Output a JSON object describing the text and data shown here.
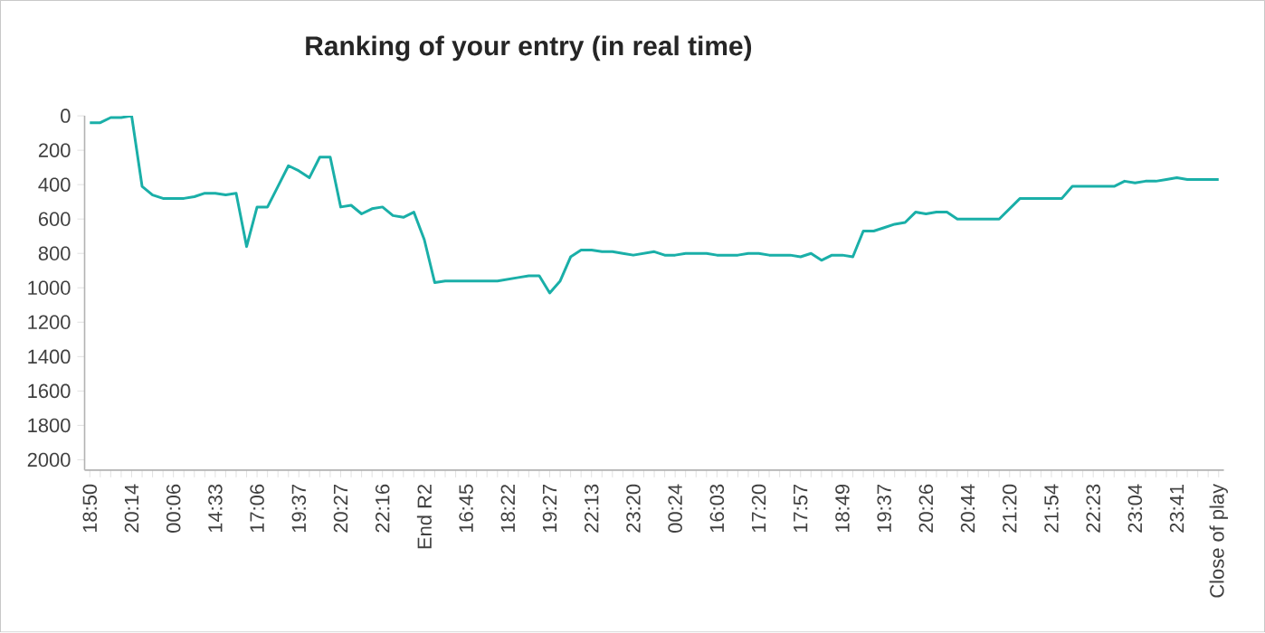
{
  "chart_data": {
    "type": "line",
    "title": "Ranking of your entry (in real time)",
    "categories": [
      "18:50",
      null,
      null,
      null,
      "20:14",
      null,
      null,
      null,
      "00:06",
      null,
      null,
      null,
      "14:33",
      null,
      null,
      null,
      "17:06",
      null,
      null,
      null,
      "19:37",
      null,
      null,
      null,
      "20:27",
      null,
      null,
      null,
      "22:16",
      null,
      null,
      null,
      "End R2",
      null,
      null,
      null,
      "16:45",
      null,
      null,
      null,
      "18:22",
      null,
      null,
      null,
      "19:27",
      null,
      null,
      null,
      "22:13",
      null,
      null,
      null,
      "23:20",
      null,
      null,
      null,
      "00:24",
      null,
      null,
      null,
      "16:03",
      null,
      null,
      null,
      "17:20",
      null,
      null,
      null,
      "17:57",
      null,
      null,
      null,
      "18:49",
      null,
      null,
      null,
      "19:37",
      null,
      null,
      null,
      "20:26",
      null,
      null,
      null,
      "20:44",
      null,
      null,
      null,
      "21:20",
      null,
      null,
      null,
      "21:54",
      null,
      null,
      null,
      "22:23",
      null,
      null,
      null,
      "23:04",
      null,
      null,
      null,
      "23:41",
      null,
      null,
      null,
      "Close of play"
    ],
    "values": [
      40,
      40,
      10,
      10,
      0,
      410,
      460,
      480,
      480,
      480,
      470,
      450,
      450,
      460,
      450,
      760,
      530,
      530,
      410,
      290,
      320,
      360,
      240,
      240,
      530,
      520,
      570,
      540,
      530,
      580,
      590,
      560,
      720,
      970,
      960,
      960,
      960,
      960,
      960,
      960,
      950,
      940,
      930,
      930,
      1030,
      960,
      820,
      780,
      780,
      790,
      790,
      800,
      810,
      800,
      790,
      810,
      810,
      800,
      800,
      800,
      810,
      810,
      810,
      800,
      800,
      810,
      810,
      810,
      820,
      800,
      840,
      810,
      810,
      820,
      670,
      670,
      650,
      630,
      620,
      560,
      570,
      560,
      560,
      600,
      600,
      600,
      600,
      600,
      540,
      480,
      480,
      480,
      480,
      480,
      410,
      410,
      410,
      410,
      410,
      380,
      390,
      380,
      380,
      370,
      360,
      370,
      370,
      370,
      370
    ],
    "color": "#1aafa8",
    "ylim": [
      2060,
      0
    ],
    "yticks": [
      0,
      200,
      400,
      600,
      800,
      1000,
      1200,
      1400,
      1600,
      1800,
      2000
    ],
    "grid": false,
    "marker": "none",
    "line_style": "solid"
  }
}
